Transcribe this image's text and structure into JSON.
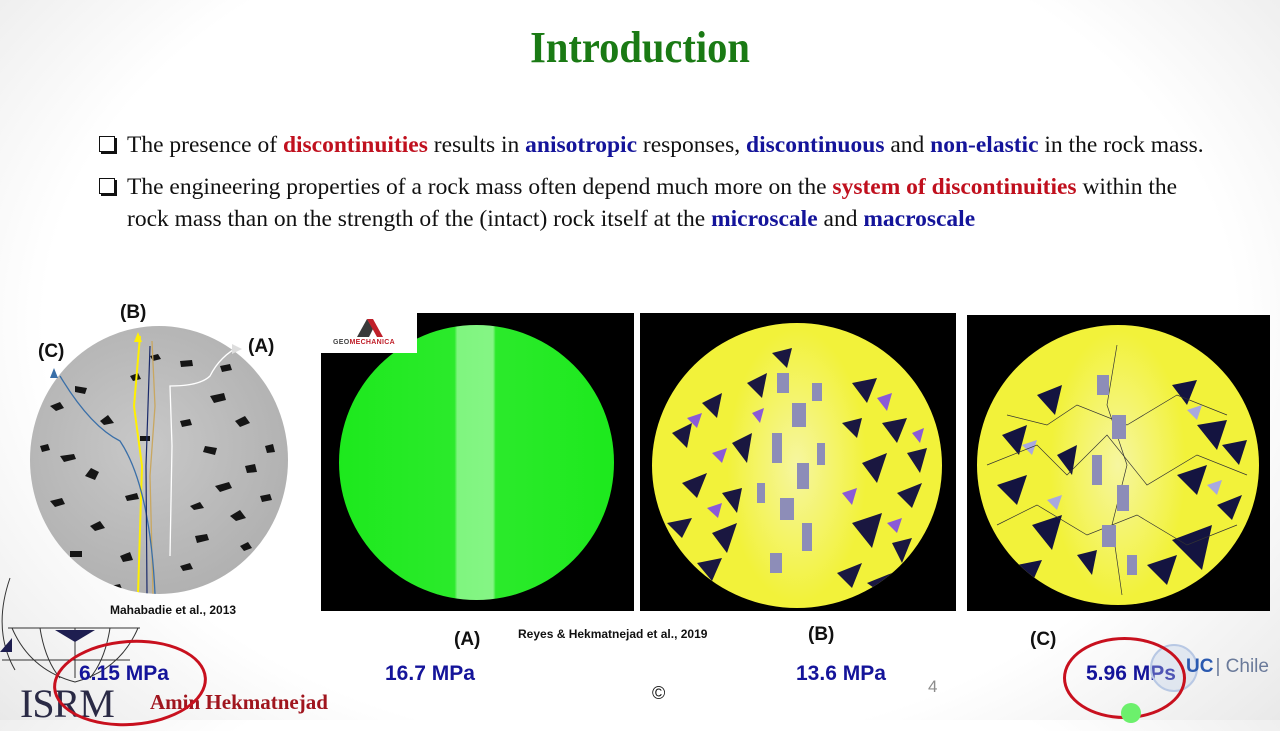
{
  "slide": {
    "title": "Introduction",
    "page_number": "4",
    "copyright_symbol": "©",
    "colors": {
      "title": "#1a7a14",
      "emphasis_red": "#c0101e",
      "emphasis_blue": "#14149a",
      "highlight_ellipse": "#c8101e"
    }
  },
  "bullets": [
    {
      "parts": [
        {
          "t": "The presence of ",
          "s": "n"
        },
        {
          "t": "discontinuities",
          "s": "r"
        },
        {
          "t": " results in ",
          "s": "n"
        },
        {
          "t": "anisotropic",
          "s": "b"
        },
        {
          "t": " responses, ",
          "s": "n"
        },
        {
          "t": "discontinuous",
          "s": "b"
        },
        {
          "t": " and ",
          "s": "n"
        },
        {
          "t": "non-elastic",
          "s": "b"
        },
        {
          "t": " in the rock mass.",
          "s": "n"
        }
      ]
    },
    {
      "parts": [
        {
          "t": "The engineering properties of a rock mass often depend much more on the ",
          "s": "n"
        },
        {
          "t": "system of discontinuities",
          "s": "r"
        },
        {
          "t": " within the rock mass than on the strength of the (intact) rock itself at the ",
          "s": "n"
        },
        {
          "t": "microscale",
          "s": "b"
        },
        {
          "t": " and ",
          "s": "n"
        },
        {
          "t": "macroscale",
          "s": "b"
        }
      ]
    }
  ],
  "ct_image": {
    "label_a": "(A)",
    "label_b": "(B)",
    "label_c": "(C)",
    "citation": "Mahabadie et al., 2013"
  },
  "simulations": {
    "logo_text_1": "GEO",
    "logo_text_2": "MECHANICA",
    "citation": "Reyes & Hekmatnejad et al., 2019",
    "panels": [
      {
        "label": "(A)",
        "strength": "16.7 MPa"
      },
      {
        "label": "(B)",
        "strength": "13.6 MPa"
      },
      {
        "label": "(C)",
        "strength": "5.96 MPs"
      }
    ]
  },
  "ct_strength": "6.15 MPa",
  "footer": {
    "org_logo": "ISRM",
    "author": "Amin Hekmatnejad",
    "university_logo_1": "UC",
    "university_logo_2": "| Chile"
  }
}
